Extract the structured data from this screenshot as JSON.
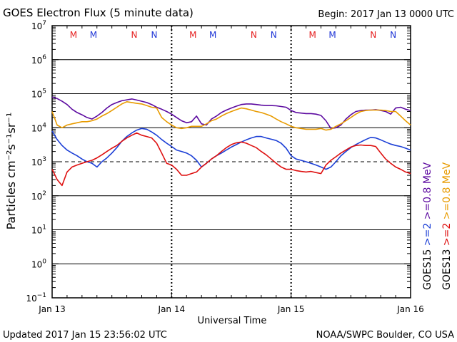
{
  "header": {
    "title": "GOES Electron Flux (5 minute data)",
    "begin": "Begin: 2017 Jan 13 0000 UTC"
  },
  "footer": {
    "updated": "Updated 2017 Jan 15 23:56:02 UTC",
    "credit": "NOAA/SWPC Boulder, CO USA"
  },
  "colors": {
    "goes15_high": "#5c0aa0",
    "goes13_high": "#e89b00",
    "goes15_low": "#1c3fd6",
    "goes13_low": "#de0f0f",
    "marker_M": "#e51d1d",
    "marker_N": "#1d34d6"
  },
  "chart_data": {
    "type": "line",
    "title": "GOES Electron Flux (5 minute data)",
    "xlabel": "Universal Time",
    "ylabel": "Particles cm⁻²s⁻¹sr⁻¹",
    "yscale": "log",
    "ylim": [
      0.1,
      10000000
    ],
    "xlim": [
      0,
      72
    ],
    "x_unit": "hours since 2017 Jan 13 0000 UTC",
    "x_ticks": [
      {
        "x": 0,
        "label": "Jan 13"
      },
      {
        "x": 24,
        "label": "Jan 14"
      },
      {
        "x": 48,
        "label": "Jan 15"
      },
      {
        "x": 72,
        "label": "Jan 16"
      }
    ],
    "y_ticks": [
      {
        "value": 0.1,
        "base": "10",
        "exp": "−1"
      },
      {
        "value": 1,
        "base": "10",
        "exp": "0"
      },
      {
        "value": 10,
        "base": "10",
        "exp": "1"
      },
      {
        "value": 100,
        "base": "10",
        "exp": "2"
      },
      {
        "value": 1000,
        "base": "10",
        "exp": "3"
      },
      {
        "value": 10000,
        "base": "10",
        "exp": "4"
      },
      {
        "value": 100000,
        "base": "10",
        "exp": "5"
      },
      {
        "value": 1000000,
        "base": "10",
        "exp": "6"
      },
      {
        "value": 10000000,
        "base": "10",
        "exp": "7"
      }
    ],
    "threshold": {
      "value": 1000,
      "style": "dashed"
    },
    "grid_lines": [
      1,
      10,
      100,
      10000,
      100000,
      1000000
    ],
    "markers": [
      {
        "x": 4.3,
        "label": "M",
        "satellite": "GOES13"
      },
      {
        "x": 8.3,
        "label": "M",
        "satellite": "GOES15"
      },
      {
        "x": 16.5,
        "label": "N",
        "satellite": "GOES13"
      },
      {
        "x": 20.5,
        "label": "N",
        "satellite": "GOES15"
      },
      {
        "x": 28.3,
        "label": "M",
        "satellite": "GOES13"
      },
      {
        "x": 32.3,
        "label": "M",
        "satellite": "GOES15"
      },
      {
        "x": 40.5,
        "label": "N",
        "satellite": "GOES13"
      },
      {
        "x": 44.5,
        "label": "N",
        "satellite": "GOES15"
      },
      {
        "x": 52.3,
        "label": "M",
        "satellite": "GOES13"
      },
      {
        "x": 56.3,
        "label": "M",
        "satellite": "GOES15"
      },
      {
        "x": 64.5,
        "label": "N",
        "satellite": "GOES13"
      },
      {
        "x": 68.5,
        "label": "N",
        "satellite": "GOES15"
      }
    ],
    "legend": {
      "placement": "right",
      "columns": [
        {
          "satellite": "GOES15",
          "low": ">=2",
          "high": ">=0.8",
          "unit": "MeV"
        },
        {
          "satellite": "GOES13",
          "low": ">=2",
          "high": ">=0.8",
          "unit": "MeV"
        }
      ]
    },
    "series": [
      {
        "name": "GOES15 >=0.8 MeV",
        "x": [
          0,
          1,
          2,
          3,
          4,
          5,
          6,
          7,
          8,
          9,
          10,
          11,
          12,
          13,
          14,
          15,
          16,
          17,
          18,
          19,
          20,
          21,
          22,
          23,
          24,
          25,
          26,
          27,
          28,
          29,
          30,
          31,
          32,
          33,
          34,
          35,
          36,
          37,
          38,
          39,
          40,
          41,
          42,
          43,
          44,
          45,
          46,
          47,
          48,
          49,
          50,
          51,
          52,
          53,
          54,
          55,
          56,
          57,
          58,
          59,
          60,
          61,
          62,
          63,
          64,
          65,
          66,
          67,
          68,
          69,
          70,
          71,
          72
        ],
        "values": [
          80000,
          72000,
          60000,
          48000,
          35000,
          28000,
          24000,
          20000,
          18000,
          22000,
          28000,
          38000,
          48000,
          55000,
          62000,
          66000,
          70000,
          65000,
          60000,
          55000,
          48000,
          40000,
          35000,
          30000,
          25000,
          20000,
          16000,
          14000,
          15000,
          22000,
          13000,
          12000,
          18000,
          22000,
          28000,
          33000,
          38000,
          43000,
          48000,
          50000,
          50000,
          48000,
          46000,
          45000,
          45000,
          44000,
          42000,
          40000,
          32000,
          28000,
          27000,
          26000,
          26000,
          25000,
          23000,
          16000,
          9500,
          10000,
          12000,
          18000,
          24000,
          30000,
          32000,
          33000,
          33000,
          34000,
          32000,
          30000,
          25000,
          38000,
          40000,
          35000,
          32000
        ]
      },
      {
        "name": "GOES13 >=0.8 MeV",
        "x": [
          0,
          1,
          2,
          3,
          4,
          5,
          6,
          7,
          8,
          9,
          10,
          11,
          12,
          13,
          14,
          15,
          16,
          17,
          18,
          19,
          20,
          21,
          22,
          23,
          24,
          25,
          26,
          27,
          28,
          29,
          30,
          31,
          32,
          33,
          34,
          35,
          36,
          37,
          38,
          39,
          40,
          41,
          42,
          43,
          44,
          45,
          46,
          47,
          48,
          49,
          50,
          51,
          52,
          53,
          54,
          55,
          56,
          57,
          58,
          59,
          60,
          61,
          62,
          63,
          64,
          65,
          66,
          67,
          68,
          69,
          70,
          71,
          72
        ],
        "values": [
          30000,
          12000,
          10000,
          12000,
          13000,
          14000,
          15000,
          15000,
          16000,
          18000,
          22000,
          26000,
          32000,
          40000,
          50000,
          58000,
          55000,
          52000,
          50000,
          45000,
          40000,
          38000,
          20000,
          15000,
          12000,
          10000,
          9500,
          10000,
          11000,
          11000,
          11000,
          13000,
          16000,
          18000,
          22000,
          26000,
          30000,
          34000,
          38000,
          36000,
          33000,
          30000,
          28000,
          25000,
          22000,
          18000,
          15000,
          13000,
          11000,
          10000,
          9500,
          9000,
          9000,
          9000,
          9500,
          8500,
          9000,
          11000,
          13000,
          16000,
          20000,
          25000,
          30000,
          32000,
          33000,
          33000,
          33000,
          32000,
          30000,
          30000,
          22000,
          16000,
          12000
        ]
      },
      {
        "name": "GOES15 >=2 MeV",
        "x": [
          0,
          1,
          2,
          3,
          4,
          5,
          6,
          7,
          8,
          9,
          10,
          11,
          12,
          13,
          14,
          15,
          16,
          17,
          18,
          19,
          20,
          21,
          22,
          23,
          24,
          25,
          26,
          27,
          28,
          29,
          30,
          31,
          32,
          33,
          34,
          35,
          36,
          37,
          38,
          39,
          40,
          41,
          42,
          43,
          44,
          45,
          46,
          47,
          48,
          49,
          50,
          51,
          52,
          53,
          54,
          55,
          56,
          57,
          58,
          59,
          60,
          61,
          62,
          63,
          64,
          65,
          66,
          67,
          68,
          69,
          70,
          71,
          72
        ],
        "values": [
          8000,
          4500,
          3000,
          2200,
          1800,
          1500,
          1200,
          1000,
          900,
          700,
          1000,
          1300,
          1800,
          2600,
          4000,
          5500,
          7000,
          8500,
          9500,
          9000,
          7500,
          6000,
          4500,
          3500,
          2800,
          2200,
          2000,
          1800,
          1500,
          1100,
          700,
          900,
          1200,
          1500,
          1800,
          2200,
          2700,
          3200,
          3800,
          4400,
          5000,
          5500,
          5500,
          5000,
          4600,
          4200,
          3500,
          2500,
          1500,
          1200,
          1100,
          1000,
          900,
          800,
          700,
          600,
          700,
          1000,
          1500,
          2000,
          2600,
          3200,
          3800,
          4500,
          5200,
          5000,
          4400,
          3800,
          3300,
          3000,
          2800,
          2500,
          2200
        ]
      },
      {
        "name": "GOES13 >=2 MeV",
        "x": [
          0,
          1,
          2,
          3,
          4,
          5,
          6,
          7,
          8,
          9,
          10,
          11,
          12,
          13,
          14,
          15,
          16,
          17,
          18,
          19,
          20,
          21,
          22,
          23,
          24,
          25,
          26,
          27,
          28,
          29,
          30,
          31,
          32,
          33,
          34,
          35,
          36,
          37,
          38,
          39,
          40,
          41,
          42,
          43,
          44,
          45,
          46,
          47,
          48,
          49,
          50,
          51,
          52,
          53,
          54,
          55,
          56,
          57,
          58,
          59,
          60,
          61,
          62,
          63,
          64,
          65,
          66,
          67,
          68,
          69,
          70,
          71,
          72
        ],
        "values": [
          600,
          300,
          200,
          500,
          700,
          800,
          900,
          1000,
          1100,
          1300,
          1600,
          2000,
          2500,
          3000,
          4000,
          5000,
          6000,
          7000,
          6000,
          5500,
          5000,
          3500,
          1800,
          900,
          800,
          600,
          400,
          400,
          450,
          500,
          700,
          900,
          1200,
          1500,
          2000,
          2600,
          3200,
          3600,
          3800,
          3500,
          3000,
          2600,
          2000,
          1600,
          1200,
          900,
          700,
          600,
          600,
          550,
          520,
          500,
          520,
          480,
          450,
          800,
          1100,
          1400,
          1800,
          2200,
          2700,
          3000,
          3100,
          3000,
          3000,
          2800,
          1800,
          1200,
          900,
          700,
          600,
          500,
          450
        ]
      }
    ]
  }
}
